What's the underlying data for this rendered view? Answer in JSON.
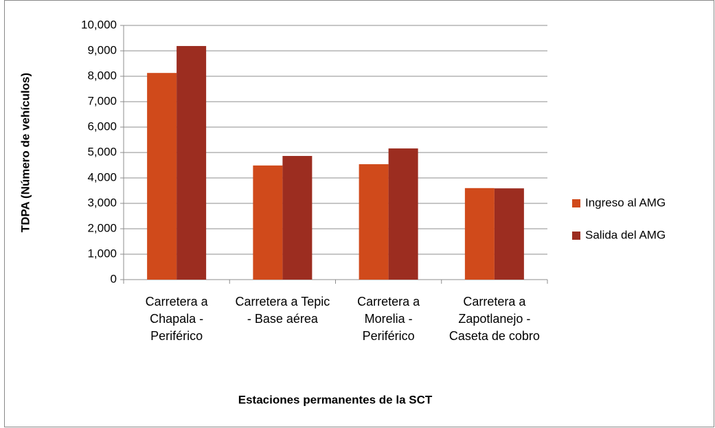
{
  "chart_data": {
    "type": "bar",
    "x_label": "Estaciones permanentes de la SCT",
    "y_label": "TDPA (Número de vehículos)",
    "categories": [
      "Carretera a Chapala - Periférico",
      "Carretera a Tepic - Base aérea",
      "Carretera a Morelia - Periférico",
      "Carretera a Zapotlanejo - Caseta de cobro"
    ],
    "series": [
      {
        "name": "Ingreso al AMG",
        "color": "#d04a1b",
        "values": [
          8130,
          4490,
          4540,
          3600
        ]
      },
      {
        "name": "Salida del AMG",
        "color": "#9c2d20",
        "values": [
          9190,
          4865,
          5160,
          3590
        ]
      }
    ],
    "ylim": [
      0,
      10000
    ],
    "yticks": [
      0,
      {
        "value": 1000,
        "label": "1,000"
      },
      {
        "value": 2000,
        "label": "2,000"
      },
      {
        "value": 3000,
        "label": "3,000"
      },
      {
        "value": 4000,
        "label": "4,000"
      },
      {
        "value": 5000,
        "label": "5,000"
      },
      {
        "value": 6000,
        "label": "6,000"
      },
      {
        "value": 7000,
        "label": "7,000"
      },
      {
        "value": 8000,
        "label": "8,000"
      },
      {
        "value": 9000,
        "label": "9,000"
      },
      {
        "value": 10000,
        "label": "10,000"
      }
    ],
    "grid": true,
    "legend": "right"
  }
}
